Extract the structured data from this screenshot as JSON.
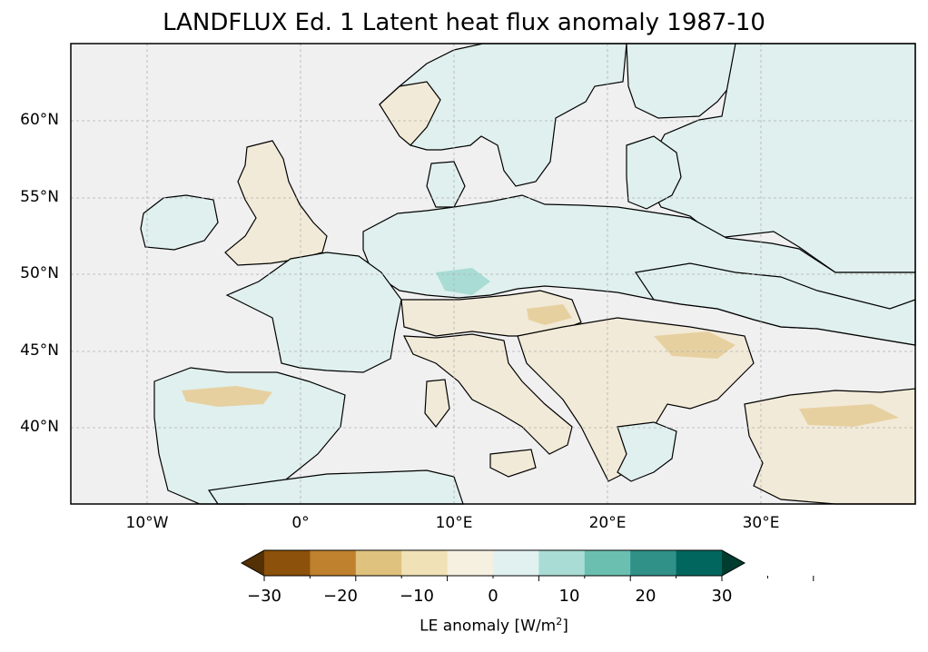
{
  "title": "LANDFLUX Ed. 1 Latent heat flux anomaly 1987-10",
  "map": {
    "lat_ticks": [
      "60°N",
      "55°N",
      "50°N",
      "45°N",
      "40°N"
    ],
    "lon_ticks": [
      "10°W",
      "0°",
      "10°E",
      "20°E",
      "30°E"
    ],
    "colors": {
      "sea": "#f0f0f0",
      "coast": "#000000",
      "grid": "#b0b0b0",
      "dry_light": "#f2ead8",
      "dry_mid": "#e7d0a0",
      "wet_light": "#dff0ee",
      "wet_mid": "#a8dcd4"
    }
  },
  "colorbar": {
    "tick_labels": [
      "−30",
      "−20",
      "−10",
      "0",
      "10",
      "20",
      "30"
    ],
    "label_text": "LE anomaly [W/m",
    "label_sup": "2",
    "label_close": "]",
    "colors": [
      "#543005",
      "#8c510a",
      "#bf812d",
      "#dfc27d",
      "#f0e2b6",
      "#f5f0e0",
      "#e1f1ef",
      "#a8dcd4",
      "#6bbfb0",
      "#2f9188",
      "#01665e",
      "#003c30"
    ],
    "extend": "both"
  }
}
